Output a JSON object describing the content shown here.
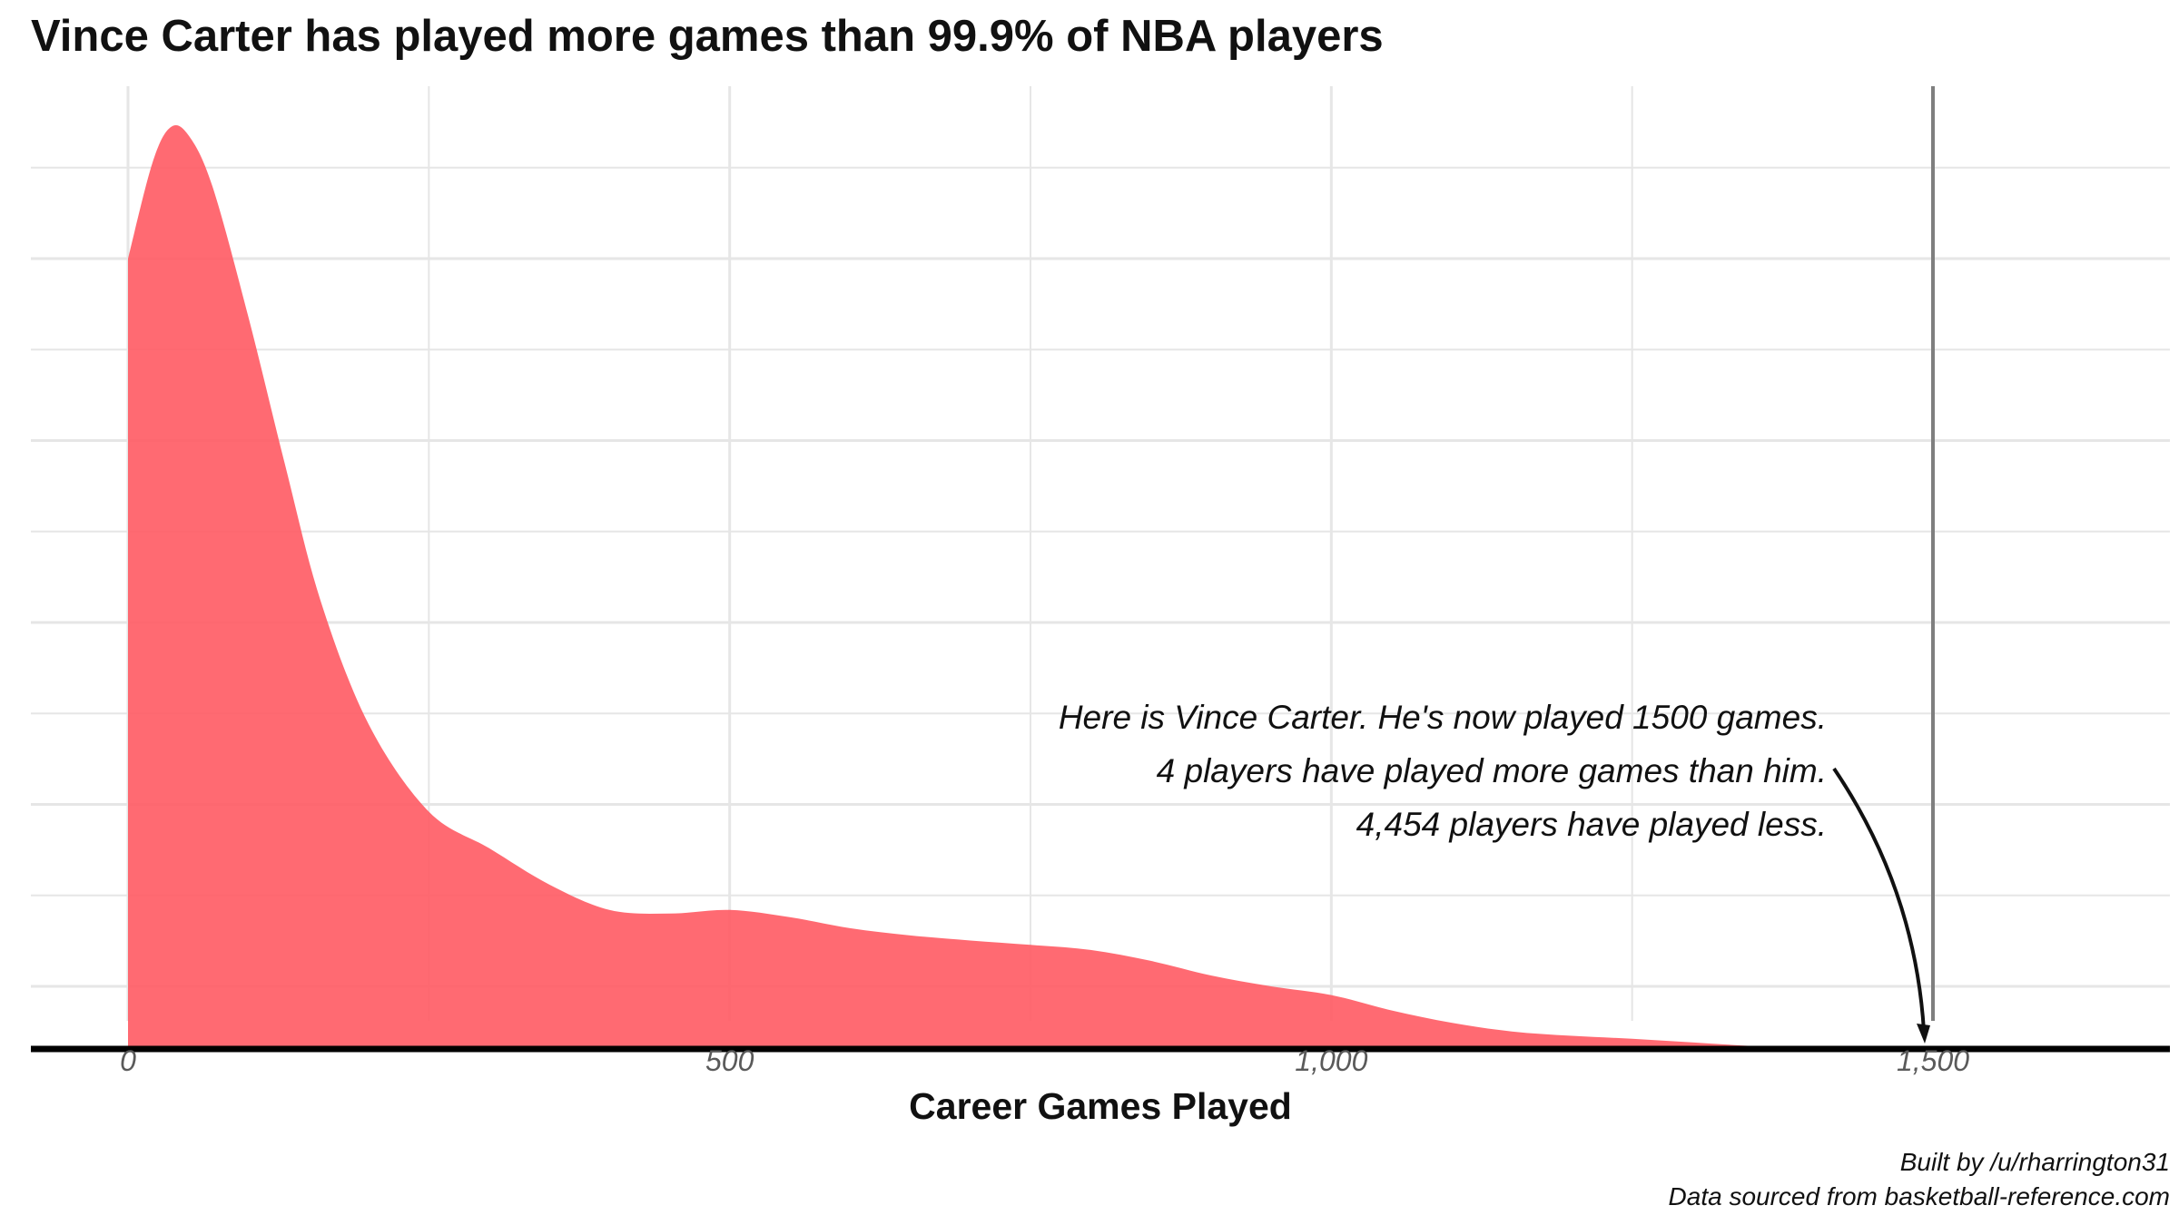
{
  "chart_data": {
    "type": "area",
    "title": "Vince Carter has played more games than 99.9% of NBA players",
    "xlabel": "Career Games Played",
    "ylabel": "",
    "xlim": [
      -80,
      1700
    ],
    "xticks": [
      0,
      500,
      1000,
      1500
    ],
    "xtick_labels": [
      "0",
      "500",
      "1,000",
      "1,500"
    ],
    "y_ticks_shown": false,
    "grid": true,
    "fill_color": "#ff5a63",
    "series": [
      {
        "x": [
          0,
          20,
          35,
          50,
          70,
          100,
          130,
          160,
          200,
          250,
          300,
          350,
          400,
          450,
          500,
          550,
          600,
          650,
          700,
          750,
          800,
          850,
          900,
          950,
          1000,
          1050,
          1100,
          1150,
          1200,
          1250,
          1300,
          1350,
          1400,
          1450,
          1500
        ],
        "y": [
          1.0,
          1.13,
          1.18,
          1.17,
          1.1,
          0.92,
          0.72,
          0.53,
          0.36,
          0.24,
          0.19,
          0.14,
          0.105,
          0.1,
          0.105,
          0.095,
          0.08,
          0.07,
          0.063,
          0.057,
          0.05,
          0.035,
          0.015,
          0.0,
          -0.012,
          -0.033,
          -0.05,
          -0.062,
          -0.068,
          -0.072,
          -0.077,
          -0.082,
          -0.085,
          -0.086,
          -0.086
        ]
      }
    ],
    "baseline_y": -0.086,
    "reference_line": {
      "x": 1500,
      "color": "#7f7f7f"
    },
    "annotation": {
      "lines": [
        "Here is Vince Carter. He's now played 1500 games.",
        "4 players have played more games than him.",
        "4,454 players have played less."
      ],
      "arrow_to_x": 1500
    },
    "caption": [
      "Built by /u/rharrington31",
      "Data sourced from basketball-reference.com"
    ]
  }
}
